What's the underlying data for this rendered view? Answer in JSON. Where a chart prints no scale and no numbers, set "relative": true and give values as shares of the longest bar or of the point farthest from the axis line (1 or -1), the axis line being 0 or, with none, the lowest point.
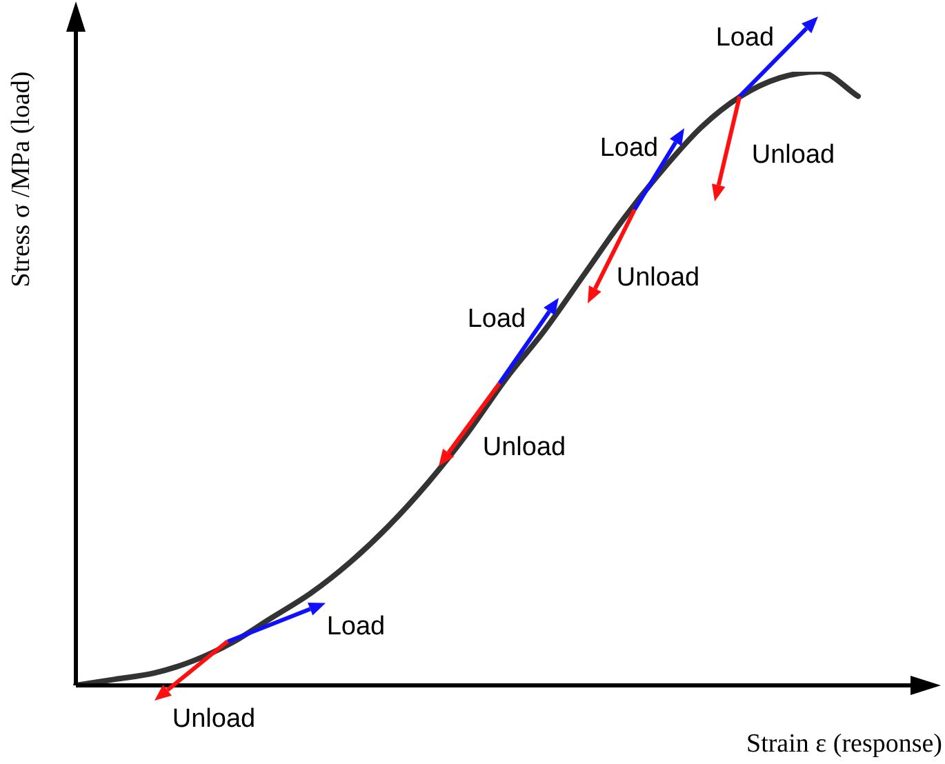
{
  "chart_data": {
    "type": "line",
    "relative": true,
    "xlabel": "Strain ε (response)",
    "ylabel": "Stress σ /MPa (load)",
    "categories": [
      null,
      null,
      null,
      null,
      null,
      null,
      null,
      null,
      null,
      null,
      null,
      null,
      null,
      null,
      null,
      null,
      null,
      null,
      null,
      null,
      null
    ],
    "series": [
      {
        "color": "#333333",
        "values": [
          0,
          0.01,
          0.02,
          0.04,
          0.07,
          0.11,
          0.15,
          0.2,
          0.26,
          0.33,
          0.41,
          0.5,
          0.58,
          0.67,
          0.76,
          0.84,
          0.91,
          0.96,
          0.99,
          1,
          0.96
        ]
      }
    ],
    "annotations": [
      "Load",
      "Unload",
      "Load",
      "Unload",
      "Load",
      "Unload",
      "Load",
      "Unload"
    ],
    "legend": false,
    "marker": "none",
    "line_style": "solid"
  }
}
